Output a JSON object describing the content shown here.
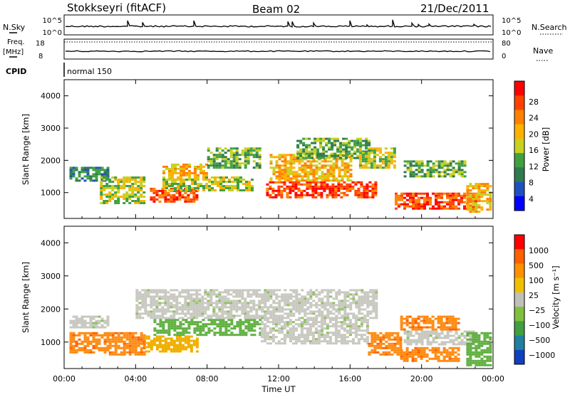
{
  "header": {
    "station": "Stokkseyri (fitACF)",
    "beam": "Beam 02",
    "date": "21/Dec/2011"
  },
  "summary_panel": {
    "nsky_label": "N.Sky",
    "nsearch_label": "N.Search",
    "left_ticks": [
      "10^5",
      "10^0"
    ],
    "right_ticks": [
      "10^5",
      "10^0"
    ],
    "freq_label": "Freq.",
    "freq_unit": "[MHz]",
    "freq_ticks": [
      "18",
      "8"
    ],
    "nave_label": "Nave",
    "nave_ticks": [
      "80",
      "0"
    ],
    "cpid_label": "CPID",
    "cpid_value": "normal 150"
  },
  "colors": {
    "power_scale": [
      "#0000ff",
      "#2050c0",
      "#2f7a4f",
      "#40a040",
      "#c8d020",
      "#ffb000",
      "#ff8000",
      "#ff4000",
      "#ff0000"
    ],
    "velocity_scale": [
      "#1040c0",
      "#2080a0",
      "#40a040",
      "#80c040",
      "#c0c0b8",
      "#f0c000",
      "#ff9000",
      "#ff6000",
      "#ff0000"
    ]
  },
  "chart_data": [
    {
      "type": "heatmap",
      "name": "power",
      "ylabel": "Slant Range [km]",
      "yticks": [
        "1000",
        "2000",
        "3000",
        "4000"
      ],
      "ylim": [
        200,
        4500
      ],
      "xlim": [
        0,
        24
      ],
      "colorbar": {
        "label": "Power [dB]",
        "ticks": [
          "4",
          "8",
          "12",
          "16",
          "20",
          "24",
          "28"
        ],
        "range": [
          0,
          32
        ]
      },
      "blobs": [
        {
          "t0": 0.3,
          "t1": 2.5,
          "r0": 1400,
          "r1": 1800,
          "value": 8
        },
        {
          "t0": 2.0,
          "t1": 4.5,
          "r0": 650,
          "r1": 1500,
          "value": 14
        },
        {
          "t0": 4.8,
          "t1": 7.5,
          "r0": 700,
          "r1": 1150,
          "value": 27
        },
        {
          "t0": 5.5,
          "t1": 8.0,
          "r0": 1550,
          "r1": 1900,
          "value": 20
        },
        {
          "t0": 5.5,
          "t1": 10.5,
          "r0": 1100,
          "r1": 1500,
          "value": 15
        },
        {
          "t0": 8.0,
          "t1": 11.0,
          "r0": 1800,
          "r1": 2400,
          "value": 12
        },
        {
          "t0": 11.3,
          "t1": 17.5,
          "r0": 850,
          "r1": 1350,
          "value": 28
        },
        {
          "t0": 11.5,
          "t1": 16.0,
          "r0": 1400,
          "r1": 2200,
          "value": 18
        },
        {
          "t0": 13.0,
          "t1": 17.0,
          "r0": 2100,
          "r1": 2700,
          "value": 13
        },
        {
          "t0": 16.5,
          "t1": 18.5,
          "r0": 1800,
          "r1": 2400,
          "value": 14
        },
        {
          "t0": 18.5,
          "t1": 23.0,
          "r0": 500,
          "r1": 1000,
          "value": 26
        },
        {
          "t0": 19.0,
          "t1": 22.5,
          "r0": 1500,
          "r1": 2000,
          "value": 10
        },
        {
          "t0": 22.5,
          "t1": 23.8,
          "r0": 400,
          "r1": 1300,
          "value": 18
        }
      ]
    },
    {
      "type": "heatmap",
      "name": "velocity",
      "ylabel": "Slant Range [km]",
      "yticks": [
        "1000",
        "2000",
        "3000",
        "4000"
      ],
      "ylim": [
        200,
        4500
      ],
      "xlim": [
        0,
        24
      ],
      "xticks": [
        "00:00",
        "04:00",
        "08:00",
        "12:00",
        "16:00",
        "20:00",
        "00:00"
      ],
      "xlabel": "Time UT",
      "colorbar": {
        "label": "Velocity [m s⁻¹]",
        "ticks": [
          "1000",
          "500",
          "100",
          "25",
          "−25",
          "−100",
          "−500",
          "−1000"
        ]
      },
      "blobs": [
        {
          "t0": 0.3,
          "t1": 2.5,
          "r0": 1450,
          "r1": 1800,
          "value": "gray"
        },
        {
          "t0": 0.3,
          "t1": 2.5,
          "r0": 700,
          "r1": 1300,
          "value": "orange"
        },
        {
          "t0": 2.5,
          "t1": 4.5,
          "r0": 650,
          "r1": 1300,
          "value": "orange"
        },
        {
          "t0": 4.5,
          "t1": 7.5,
          "r0": 700,
          "r1": 1200,
          "value": "gold"
        },
        {
          "t0": 5.0,
          "t1": 11.0,
          "r0": 1200,
          "r1": 1700,
          "value": "green"
        },
        {
          "t0": 4.0,
          "t1": 17.5,
          "r0": 1700,
          "r1": 2600,
          "value": "gray"
        },
        {
          "t0": 11.0,
          "t1": 17.0,
          "r0": 950,
          "r1": 1700,
          "value": "gray"
        },
        {
          "t0": 17.0,
          "t1": 18.8,
          "r0": 600,
          "r1": 1300,
          "value": "orange"
        },
        {
          "t0": 18.8,
          "t1": 22.0,
          "r0": 450,
          "r1": 850,
          "value": "orange"
        },
        {
          "t0": 18.8,
          "t1": 22.0,
          "r0": 1400,
          "r1": 1800,
          "value": "orange"
        },
        {
          "t0": 19.0,
          "t1": 23.0,
          "r0": 900,
          "r1": 1350,
          "value": "gray"
        },
        {
          "t0": 22.5,
          "t1": 23.8,
          "r0": 300,
          "r1": 1300,
          "value": "green"
        }
      ]
    }
  ]
}
